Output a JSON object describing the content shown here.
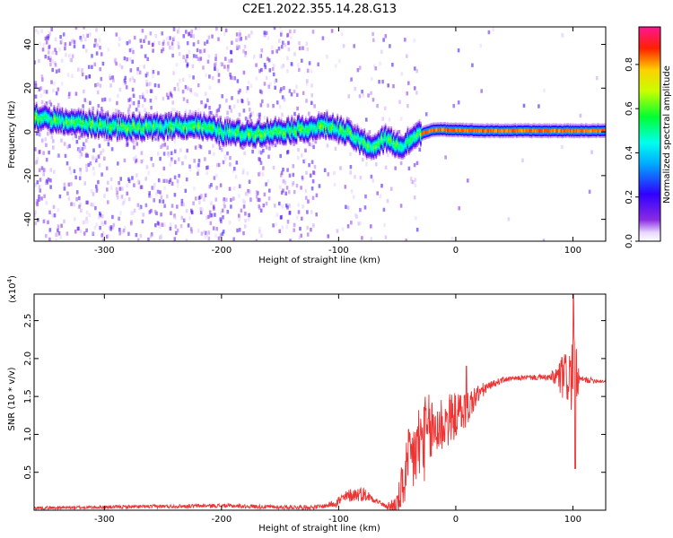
{
  "title": "C2E1.2022.355.14.28.G13",
  "chart_data": [
    {
      "type": "heatmap",
      "xlabel": "Height of straight line (km)",
      "ylabel": "Frequency (Hz)",
      "xlim": [
        -360,
        128
      ],
      "ylim": [
        -50,
        48
      ],
      "xticks": [
        -300,
        -200,
        -100,
        0,
        100
      ],
      "yticks": [
        -40,
        -20,
        0,
        20,
        40
      ],
      "grid": false,
      "colorbar": {
        "label": "Normalized spectral amplitude",
        "range": [
          0,
          0.97
        ],
        "ticks": [
          0.0,
          0.2,
          0.4,
          0.6,
          0.8
        ],
        "tick_labels": [
          "0.0",
          "0.2",
          "0.4",
          "0.6",
          "0.8"
        ],
        "colormap": "rainbow (white-purple-blue-cyan-green-yellow-red-pink)"
      },
      "ridge": {
        "x": [
          -360,
          -340,
          -320,
          -300,
          -280,
          -260,
          -240,
          -220,
          -200,
          -180,
          -160,
          -140,
          -120,
          -110,
          -100,
          -90,
          -80,
          -70,
          -60,
          -50,
          -45,
          -40,
          -30,
          -20,
          -10,
          0,
          20,
          40,
          60,
          80,
          100,
          128
        ],
        "y": [
          7,
          5,
          4,
          3,
          2,
          2,
          3,
          3,
          0,
          -1,
          0,
          1,
          2,
          3,
          1,
          -1,
          -5,
          -7,
          -3,
          -6,
          -7,
          -4,
          -1,
          1,
          1,
          1,
          0.5,
          0.5,
          0.5,
          0.5,
          0.5,
          0.5
        ]
      }
    },
    {
      "type": "line",
      "xlabel": "Height of straight line (km)",
      "ylabel": "SNR (10 * v/v)",
      "y_scale_label": "(x10",
      "y_scale_exponent": "4",
      "xlim": [
        -360,
        128
      ],
      "ylim": [
        0,
        2.85
      ],
      "xticks": [
        -300,
        -200,
        -100,
        0,
        100
      ],
      "yticks": [
        0.5,
        1.0,
        1.5,
        2.0,
        2.5
      ],
      "ytick_labels": [
        "0.5",
        "1.0",
        "1.5",
        "2.0",
        "2.5"
      ],
      "grid": false,
      "color": "#ee3333",
      "envelope": {
        "x": [
          -360,
          -300,
          -250,
          -200,
          -150,
          -120,
          -110,
          -100,
          -90,
          -80,
          -70,
          -60,
          -50,
          -45,
          -40,
          -35,
          -30,
          -20,
          -10,
          0,
          10,
          20,
          30,
          40,
          60,
          80,
          90,
          95,
          100,
          105,
          110,
          128
        ],
        "y": [
          0.03,
          0.04,
          0.05,
          0.06,
          0.04,
          0.04,
          0.06,
          0.12,
          0.2,
          0.22,
          0.15,
          0.05,
          0.05,
          0.35,
          0.6,
          0.75,
          0.9,
          1.05,
          1.15,
          1.25,
          1.35,
          1.55,
          1.65,
          1.72,
          1.75,
          1.75,
          1.75,
          1.76,
          1.75,
          1.72,
          1.72,
          1.7
        ]
      },
      "noise_amplitude": {
        "x": [
          -360,
          -110,
          -100,
          -80,
          -70,
          -60,
          -50,
          -40,
          -30,
          -20,
          -10,
          0,
          10,
          20,
          30,
          50,
          80,
          85,
          90,
          95,
          100,
          103,
          106,
          128
        ],
        "y": [
          0.02,
          0.03,
          0.08,
          0.1,
          0.05,
          0.02,
          0.2,
          0.5,
          0.6,
          0.5,
          0.4,
          0.3,
          0.25,
          0.12,
          0.05,
          0.03,
          0.04,
          0.15,
          0.3,
          0.35,
          0.6,
          0.4,
          0.05,
          0.02
        ]
      },
      "spikes": [
        {
          "x": 100.5,
          "y": 2.85
        },
        {
          "x": 102.0,
          "y": 0.55
        },
        {
          "x": 9.0,
          "y": 1.9
        },
        {
          "x": -48.0,
          "y": 0.05
        }
      ]
    }
  ]
}
